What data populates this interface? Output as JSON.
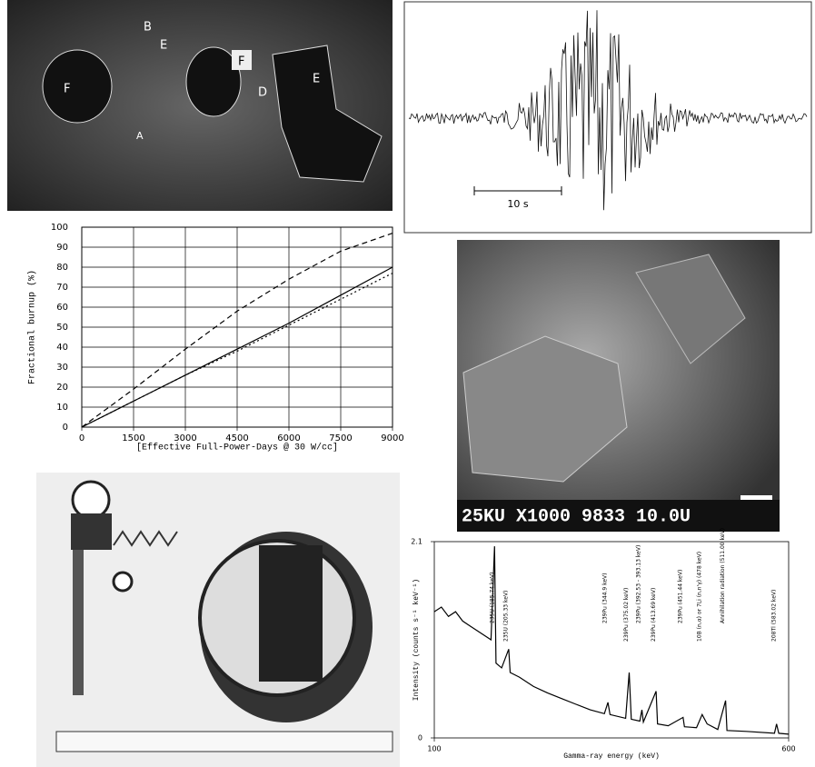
{
  "micrograph": {
    "labels": [
      "B",
      "F",
      "E",
      "F",
      "D",
      "E",
      "A"
    ]
  },
  "seismogram": {
    "scale_label": "10 s"
  },
  "sem": {
    "caption": "25KU X1000  9833  10.0U"
  },
  "chart_data": [
    {
      "type": "line",
      "ylabel": "Fractional burnup (%)",
      "xlabel": "[Effective Full-Power-Days @ 30 W/cc]",
      "x": [
        0,
        1500,
        3000,
        4500,
        6000,
        7500,
        9000
      ],
      "series": [
        {
          "color": "#000000",
          "dash": "dashed",
          "values": [
            0,
            19,
            39,
            58,
            74,
            88,
            97
          ]
        },
        {
          "color": "#000000",
          "dash": "solid",
          "values": [
            0,
            13,
            26,
            39,
            52,
            66,
            80
          ]
        },
        {
          "color": "#000000",
          "dash": "dotted",
          "values": [
            0,
            13,
            26,
            38,
            51,
            64,
            77
          ]
        }
      ],
      "xlim": [
        0,
        9000
      ],
      "xticks": [
        0,
        1500,
        3000,
        4500,
        6000,
        7500,
        9000
      ],
      "ylim": [
        0,
        100
      ],
      "yticks": [
        0,
        10,
        20,
        30,
        40,
        50,
        60,
        70,
        80,
        90,
        100
      ],
      "grid": true
    },
    {
      "type": "line",
      "ylabel": "Intensity (counts s⁻¹ keV⁻¹)",
      "xlabel": "Gamma-ray energy (keV)",
      "x": [
        100,
        110,
        120,
        130,
        140,
        150,
        160,
        170,
        180,
        185,
        187,
        195,
        205,
        207,
        220,
        240,
        260,
        280,
        300,
        320,
        340,
        345,
        348,
        370,
        375,
        378,
        390,
        393,
        395,
        413,
        415,
        430,
        451,
        453,
        470,
        478,
        485,
        500,
        511,
        513,
        540,
        580,
        583,
        586,
        600
      ],
      "series": [
        {
          "color": "#000000",
          "values": [
            1.35,
            1.4,
            1.3,
            1.35,
            1.25,
            1.2,
            1.15,
            1.1,
            1.05,
            2.05,
            0.8,
            0.75,
            0.95,
            0.7,
            0.65,
            0.55,
            0.48,
            0.42,
            0.36,
            0.3,
            0.26,
            0.38,
            0.25,
            0.21,
            0.7,
            0.2,
            0.18,
            0.3,
            0.17,
            0.5,
            0.15,
            0.13,
            0.22,
            0.12,
            0.11,
            0.25,
            0.15,
            0.09,
            0.4,
            0.08,
            0.07,
            0.05,
            0.15,
            0.05,
            0.04
          ]
        }
      ],
      "xlim": [
        100,
        600
      ],
      "xticks": [
        100,
        600
      ],
      "ylim": [
        0,
        2.1
      ],
      "yticks": [
        0,
        2.1
      ],
      "grid": false,
      "annotations": [
        {
          "x": 185.74,
          "text": "235U (185.74 keV)"
        },
        {
          "x": 205.33,
          "text": "235U (205.33 keV)"
        },
        {
          "x": 344.9,
          "text": "239Pu (344.9 keV)"
        },
        {
          "x": 375.02,
          "text": "239Pu (375.02 keV)"
        },
        {
          "x": 392.5,
          "text": "239Pu (392.53 - 393.13 keV)"
        },
        {
          "x": 413.69,
          "text": "239Pu (413.69 keV)"
        },
        {
          "x": 451.44,
          "text": "239Pu (451.44 keV)"
        },
        {
          "x": 478,
          "text": "10B (n,α) or 7Li (n,n'γ) (478 keV)"
        },
        {
          "x": 511,
          "text": "Annihilation radiation (511.00 keV)"
        },
        {
          "x": 583.02,
          "text": "208Tl (583.02 keV)"
        }
      ]
    }
  ]
}
